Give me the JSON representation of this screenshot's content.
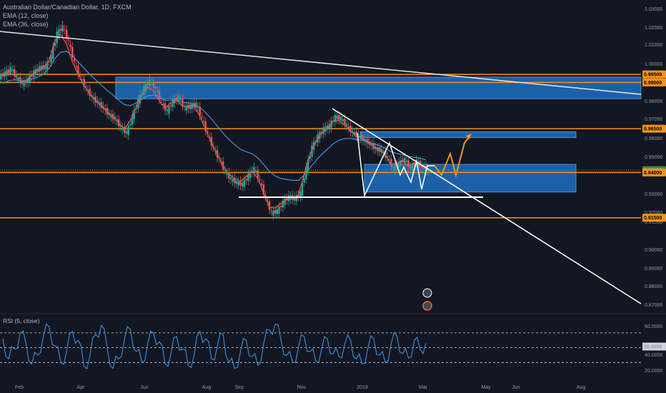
{
  "legend": {
    "title": "Australian Dollar/Canadian Dollar, 1D, FXCM",
    "ema1": "EMA (12, close)",
    "ema2": "EMA (36, close)",
    "rsi": "RSI (5, close)"
  },
  "colors": {
    "background": "#131722",
    "orange": "#f7931a",
    "blue_zone": "#1e6fbf",
    "candle_up": "#26a69a",
    "candle_down": "#ef5350",
    "ema_fast": "#ef5350",
    "ema_slow": "#4a90d9",
    "rsi_line": "#3d8fe0",
    "current_tag": "#388e3c"
  },
  "chart_data": [
    {
      "type": "candlestick",
      "title": "Australian Dollar/Canadian Dollar, 1D, FXCM",
      "x_axis_labels": [
        "Feb",
        "Apr",
        "Jun",
        "Aug",
        "Sep",
        "Nov",
        "2019",
        "Mar",
        "May",
        "Jun",
        "Aug"
      ],
      "y_axis_labels": [
        "1.03000",
        "1.02000",
        "1.01000",
        "1.00000",
        "0.98000",
        "0.97000",
        "0.96000",
        "0.95000",
        "0.93000",
        "0.92000",
        "0.91500",
        "0.90000",
        "0.89000",
        "0.88000",
        "0.87000"
      ],
      "ylim": [
        0.865,
        1.032
      ],
      "grid": false,
      "price_tags": [
        {
          "value": "0.99500",
          "level": 0.995,
          "kind": "orange"
        },
        {
          "value": "0.99000",
          "level": 0.9905,
          "kind": "orange"
        },
        {
          "value": "0.96500",
          "level": 0.9645,
          "kind": "orange"
        },
        {
          "value": "0.94120",
          "level": 0.9412,
          "kind": "current"
        },
        {
          "value": "0.94000",
          "level": 0.9399,
          "kind": "orange"
        },
        {
          "value": "0.91500",
          "level": 0.9145,
          "kind": "orange"
        }
      ],
      "horizontal_levels": [
        0.995,
        0.9905,
        0.9645,
        0.9399,
        0.9145
      ],
      "zones": [
        {
          "from": 0.9813,
          "to": 0.9935
        },
        {
          "from": 0.9595,
          "to": 0.9628
        },
        {
          "from": 0.9289,
          "to": 0.9445
        }
      ],
      "close_series": [
        0.9955,
        0.998,
        0.9935,
        0.9895,
        0.992,
        0.996,
        0.9985,
        0.999,
        1.005,
        1.018,
        1.0215,
        1.013,
        1.001,
        0.993,
        0.987,
        0.982,
        0.979,
        0.976,
        0.972,
        0.97,
        0.965,
        0.962,
        0.971,
        0.98,
        0.987,
        0.991,
        0.987,
        0.979,
        0.974,
        0.98,
        0.982,
        0.976,
        0.977,
        0.978,
        0.97,
        0.961,
        0.953,
        0.947,
        0.94,
        0.936,
        0.934,
        0.933,
        0.938,
        0.942,
        0.935,
        0.925,
        0.917,
        0.918,
        0.923,
        0.926,
        0.925,
        0.928,
        0.942,
        0.954,
        0.96,
        0.964,
        0.966,
        0.971,
        0.97,
        0.966,
        0.962,
        0.96,
        0.958,
        0.956,
        0.953,
        0.952,
        0.948,
        0.942,
        0.945,
        0.947,
        0.942,
        0.946,
        0.943,
        0.9412
      ],
      "ema_fast_series": [
        0.994,
        0.996,
        0.9945,
        0.991,
        0.9915,
        0.9945,
        0.997,
        0.9985,
        1.003,
        1.014,
        1.0175,
        1.012,
        1.002,
        0.995,
        0.989,
        0.984,
        0.9805,
        0.9775,
        0.974,
        0.9715,
        0.9675,
        0.9645,
        0.969,
        0.9765,
        0.9835,
        0.988,
        0.986,
        0.98,
        0.976,
        0.979,
        0.9805,
        0.977,
        0.9772,
        0.9775,
        0.9715,
        0.964,
        0.9565,
        0.95,
        0.9435,
        0.939,
        0.9365,
        0.935,
        0.9375,
        0.9405,
        0.9365,
        0.9285,
        0.9205,
        0.92,
        0.9225,
        0.925,
        0.925,
        0.9275,
        0.939,
        0.95,
        0.957,
        0.962,
        0.9645,
        0.969,
        0.969,
        0.9665,
        0.963,
        0.961,
        0.959,
        0.957,
        0.9545,
        0.953,
        0.9495,
        0.9445,
        0.945,
        0.9462,
        0.9432,
        0.9455,
        0.9438,
        0.942
      ],
      "ema_slow_series": [
        0.99,
        0.9915,
        0.992,
        0.9915,
        0.9915,
        0.9925,
        0.9935,
        0.995,
        0.9985,
        1.004,
        1.0075,
        1.008,
        1.0055,
        1.002,
        0.9985,
        0.995,
        0.992,
        0.989,
        0.986,
        0.9835,
        0.9805,
        0.978,
        0.9775,
        0.979,
        0.981,
        0.983,
        0.9835,
        0.982,
        0.9805,
        0.9805,
        0.9805,
        0.9795,
        0.979,
        0.9785,
        0.9765,
        0.9735,
        0.97,
        0.966,
        0.962,
        0.9585,
        0.9555,
        0.953,
        0.9515,
        0.9505,
        0.948,
        0.9445,
        0.9405,
        0.938,
        0.9365,
        0.936,
        0.9355,
        0.9355,
        0.9385,
        0.9425,
        0.9465,
        0.95,
        0.953,
        0.956,
        0.958,
        0.959,
        0.959,
        0.9585,
        0.958,
        0.957,
        0.956,
        0.955,
        0.9535,
        0.9515,
        0.9505,
        0.95,
        0.949,
        0.9485,
        0.9478,
        0.947
      ]
    },
    {
      "type": "line",
      "title": "RSI (5, close)",
      "y_axis_labels": [
        "60.0000",
        "50.0000",
        "40.0000",
        "20.0000"
      ],
      "ylim": [
        10,
        95
      ],
      "reference_lines": [
        70,
        50,
        30
      ],
      "series": [
        {
          "values": [
            62,
            35,
            48,
            70,
            55,
            28,
            40,
            66,
            78,
            52,
            30,
            45,
            72,
            60,
            25,
            38,
            68,
            80,
            50,
            22,
            35,
            62,
            75,
            45,
            30,
            55,
            70,
            58,
            28,
            42,
            65,
            48,
            26,
            40,
            72,
            62,
            35,
            52,
            68,
            30,
            22,
            45,
            60,
            38,
            26,
            55,
            74,
            82,
            60,
            40,
            30,
            50,
            65,
            45,
            32,
            48,
            62,
            42,
            38,
            55,
            60,
            35,
            28,
            50,
            62,
            40,
            30,
            55,
            66,
            42,
            36,
            60,
            48,
            56
          ]
        }
      ]
    }
  ]
}
